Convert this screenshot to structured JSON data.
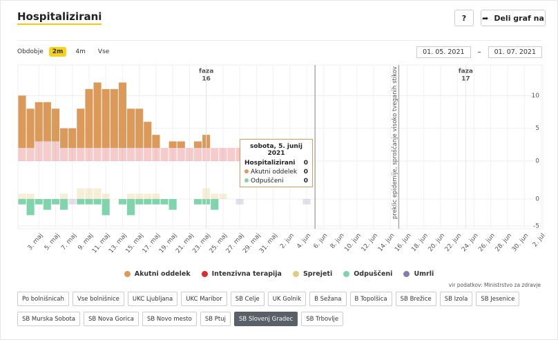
{
  "header": {
    "title": "Hospitalizirani",
    "help": "?",
    "share": "Deli graf na"
  },
  "period": {
    "label": "Obdobje",
    "options": [
      "2m",
      "4m",
      "Vse"
    ],
    "active": 0,
    "date_from": "01. 05. 2021",
    "separator": "–",
    "date_to": "01. 07. 2021"
  },
  "chart_data": {
    "type": "bar",
    "stacked": true,
    "categories": [
      null,
      null,
      "3. maj",
      null,
      "5. maj",
      null,
      "7. maj",
      null,
      "9. maj",
      null,
      "11. maj",
      null,
      "13. maj",
      null,
      "15. maj",
      null,
      "17. maj",
      null,
      "19. maj",
      null,
      "21. maj",
      null,
      "23. maj",
      null,
      "25. maj",
      null,
      "27. maj",
      null,
      "29. maj",
      null,
      "31. maj",
      null,
      "2. jun",
      null,
      "4. jun",
      null,
      "6. jun",
      null,
      "8. jun",
      null,
      "10. jun",
      null,
      "12. jun",
      null,
      "14. jun",
      null,
      "16. jun",
      null,
      "18. jun",
      null,
      "20. jun",
      null,
      "22. jun",
      null,
      "24. jun",
      null,
      "26. jun",
      null,
      "28. jun",
      null,
      "30. jun",
      null,
      "2. jul"
    ],
    "ylim": [
      0,
      15
    ],
    "yticks": [
      0,
      5,
      10
    ],
    "y2lim": [
      -5,
      5
    ],
    "y2ticks": [
      -5,
      0
    ],
    "grid": true,
    "series": [
      {
        "name": "Intenzivna terapija",
        "color": "#d8302f",
        "opacity": 0.25,
        "values": [
          2,
          2,
          3,
          3,
          3,
          2,
          2,
          2,
          2,
          2,
          2,
          2,
          2,
          2,
          2,
          2,
          2,
          2,
          2,
          2,
          2,
          2,
          2,
          2,
          2,
          2,
          2,
          0,
          0,
          0,
          0,
          0,
          0,
          0,
          0,
          0,
          null,
          null,
          null,
          null,
          null,
          null,
          null,
          null,
          null,
          null,
          null,
          null,
          null,
          null,
          null,
          null,
          null,
          null,
          null,
          null,
          null,
          null,
          null,
          null,
          null,
          null,
          null
        ]
      },
      {
        "name": "Akutni oddelek",
        "color": "#dc9a5a",
        "opacity": 1,
        "values": [
          8,
          6,
          6,
          6,
          5,
          3,
          3,
          6,
          9,
          10,
          9,
          9,
          10,
          6,
          6,
          4,
          2,
          0,
          1,
          1,
          0,
          1,
          2,
          0,
          0,
          0,
          0,
          0,
          0,
          0,
          0,
          0,
          0,
          0,
          0,
          0,
          null,
          null,
          null,
          null,
          null,
          null,
          null,
          null,
          null,
          null,
          null,
          null,
          null,
          null,
          null,
          null,
          null,
          null,
          null,
          null,
          null,
          null,
          null,
          null,
          null,
          null,
          null
        ]
      },
      {
        "name": "Sprejeti",
        "color": "#e2ca7e",
        "opacity": 0.3,
        "axis": "y2",
        "values": [
          1,
          1,
          0,
          0,
          0,
          1,
          0,
          2,
          2,
          2,
          1,
          0,
          0,
          1,
          1,
          1,
          1,
          0,
          0,
          0,
          0,
          0,
          2,
          1,
          1,
          0,
          0,
          0,
          0,
          0,
          0,
          0,
          0,
          0,
          0,
          0,
          null,
          null,
          null,
          null,
          null,
          null,
          null,
          null,
          null,
          null,
          null,
          null,
          null,
          null,
          null,
          null,
          null,
          null,
          null,
          null,
          null,
          null,
          null,
          null,
          null,
          null,
          null
        ]
      },
      {
        "name": "Odpuščeni",
        "color": "#80d4ac",
        "opacity": 1,
        "axis": "y2",
        "values": [
          -1,
          -3,
          -1,
          -2,
          -1,
          -2,
          0,
          -1,
          -1,
          -1,
          -3,
          0,
          -1,
          -3,
          -1,
          -1,
          -1,
          -1,
          -2,
          0,
          0,
          -1,
          -1,
          -2,
          0,
          0,
          0,
          0,
          0,
          0,
          0,
          0,
          0,
          0,
          0,
          0,
          null,
          null,
          null,
          null,
          null,
          null,
          null,
          null,
          null,
          null,
          null,
          null,
          null,
          null,
          null,
          null,
          null,
          null,
          null,
          null,
          null,
          null,
          null,
          null,
          null,
          null,
          null
        ]
      },
      {
        "name": "Umrli",
        "color": "#8b7bab",
        "opacity": 0.25,
        "axis": "y2",
        "values": [
          0,
          0,
          0,
          0,
          0,
          0,
          -1,
          0,
          0,
          0,
          0,
          0,
          0,
          0,
          0,
          0,
          0,
          0,
          0,
          0,
          0,
          0,
          0,
          0,
          0,
          0,
          -1,
          0,
          0,
          0,
          0,
          0,
          0,
          0,
          -1,
          0,
          null,
          null,
          null,
          null,
          null,
          null,
          null,
          null,
          null,
          null,
          null,
          null,
          null,
          null,
          null,
          null,
          null,
          null,
          null,
          null,
          null,
          null,
          null,
          null,
          null,
          null,
          null
        ]
      }
    ],
    "annotations": [
      {
        "lines": [
          "faza",
          "16"
        ],
        "x": 22
      },
      {
        "lines": [
          "faza",
          "17"
        ],
        "x": 53
      },
      {
        "text": "preklic epidemije, sproščanje visoko tveganih stikov",
        "x": 45
      }
    ],
    "tooltip": {
      "title": "sobota, 5. junij 2021",
      "x": 35,
      "rows": [
        {
          "label": "Hospitalizirani",
          "value": 0
        },
        {
          "label": "Akutni oddelek",
          "value": 0
        },
        {
          "label": "Odpuščeni",
          "value": 0
        }
      ]
    }
  },
  "source": "vir podatkov: Ministrstvo za zdravje",
  "filters": {
    "rows": [
      [
        "Po bolnišnicah",
        "Vse bolnišnice",
        "UKC Ljubljana",
        "UKC Maribor",
        "SB Celje",
        "UK Golnik",
        "B Sežana",
        "B Topolšica",
        "SB Brežice",
        "SB Izola",
        "SB Jesenice"
      ],
      [
        "SB Murska Sobota",
        "SB Nova Gorica",
        "SB Novo mesto",
        "SB Ptuj",
        "SB Slovenj Gradec",
        "SB Trbovlje"
      ]
    ],
    "active": [
      1,
      4
    ]
  }
}
